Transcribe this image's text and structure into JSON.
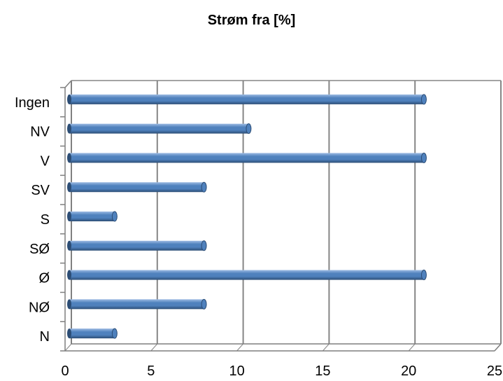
{
  "chart_data": {
    "type": "bar",
    "orientation": "horizontal",
    "title": "Strøm fra [%]",
    "xlabel": "",
    "ylabel": "",
    "categories": [
      "N",
      "NØ",
      "Ø",
      "SØ",
      "S",
      "SV",
      "V",
      "NV",
      "Ingen"
    ],
    "values": [
      2.6,
      7.8,
      20.6,
      7.8,
      2.6,
      7.8,
      20.6,
      10.4,
      20.6
    ],
    "xlim": [
      0,
      25
    ],
    "xticks": [
      "0",
      "5",
      "10",
      "15",
      "20",
      "25"
    ],
    "grid": "vertical",
    "legend": "none",
    "style": "3d-cylinder",
    "colors": {
      "bar": "#4F81BD",
      "bar_dark": "#2C4D75",
      "bar_light": "#9DBBE3",
      "grid": "#868686",
      "axis": "#7F7F7F"
    }
  }
}
